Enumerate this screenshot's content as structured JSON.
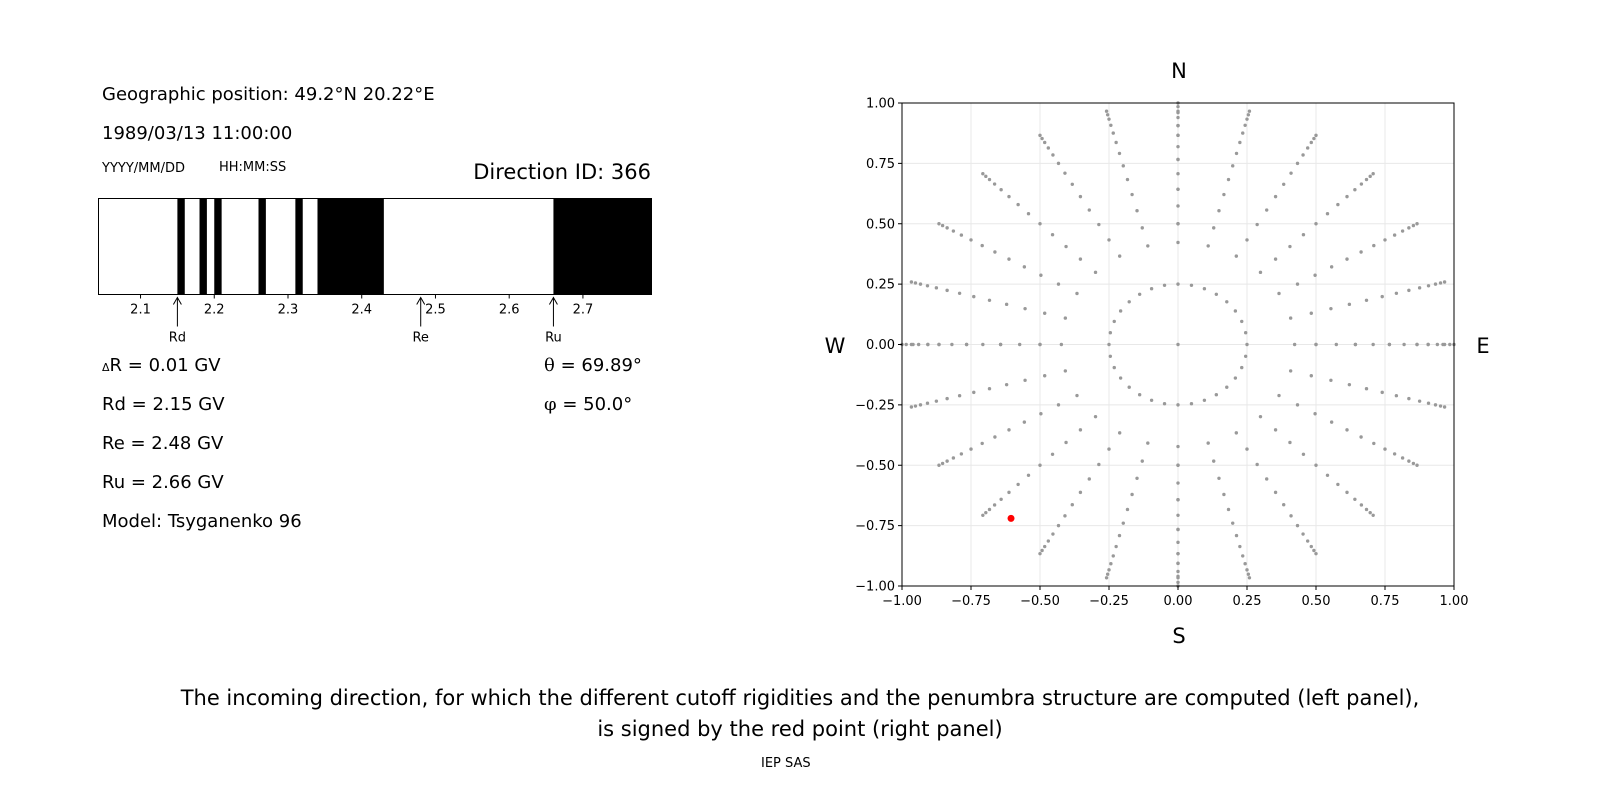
{
  "info": {
    "geo_position": "Geographic position: 49.2°N 20.22°E",
    "datetime": "1989/03/13 11:00:00",
    "date_format": "YYYY/MM/DD",
    "time_format": "HH:MM:SS",
    "direction_id": "Direction ID: 366"
  },
  "left_results": {
    "delta_r_symbol": "Δ",
    "delta_r": "R = 0.01 GV",
    "rd": "Rd = 2.15 GV",
    "re": "Re = 2.48 GV",
    "ru": "Ru = 2.66 GV",
    "model": "Model: Tsyganenko 96",
    "theta_symbol": "θ",
    "theta": "= 69.89°",
    "phi_symbol": "φ",
    "phi": "= 50.0°"
  },
  "caption": {
    "line1": "The incoming direction, for which the different cutoff rigidities and the penumbra structure are computed (left panel),",
    "line2": "is signed by the red point (right panel)",
    "credit": "IEP SAS"
  },
  "colors": {
    "grid_points": "#999999",
    "selected_point": "#ff0000",
    "penumbra_forbidden": "#000000",
    "penumbra_allowed": "#ffffff"
  },
  "chart_data": [
    {
      "type": "bar",
      "description_hint": "penumbra structure (black = forbidden rigidity bands)",
      "xlim": [
        2.043,
        2.793
      ],
      "x_ticks": [
        2.1,
        2.2,
        2.3,
        2.4,
        2.5,
        2.6,
        2.7
      ],
      "x_tick_labels": [
        "2.1",
        "2.2",
        "2.3",
        "2.4",
        "2.5",
        "2.6",
        "2.7"
      ],
      "forbidden_bands": [
        [
          2.15,
          2.16
        ],
        [
          2.18,
          2.19
        ],
        [
          2.2,
          2.21
        ],
        [
          2.26,
          2.27
        ],
        [
          2.31,
          2.32
        ],
        [
          2.34,
          2.43
        ],
        [
          2.66,
          2.793
        ]
      ],
      "markers": [
        {
          "label": "Rd",
          "x": 2.15
        },
        {
          "label": "Re",
          "x": 2.48
        },
        {
          "label": "Ru",
          "x": 2.66
        }
      ]
    },
    {
      "type": "scatter",
      "xlim": [
        -1.0,
        1.0
      ],
      "ylim": [
        -1.0,
        1.0
      ],
      "x_ticks": [
        -1.0,
        -0.75,
        -0.5,
        -0.25,
        0.0,
        0.25,
        0.5,
        0.75,
        1.0
      ],
      "x_tick_labels": [
        "−1.00",
        "−0.75",
        "−0.50",
        "−0.25",
        "0.00",
        "0.25",
        "0.50",
        "0.75",
        "1.00"
      ],
      "y_ticks": [
        -1.0,
        -0.75,
        -0.5,
        -0.25,
        0.0,
        0.25,
        0.5,
        0.75,
        1.0
      ],
      "y_tick_labels": [
        "−1.00",
        "−0.75",
        "−0.50",
        "−0.25",
        "0.00",
        "0.25",
        "0.50",
        "0.75",
        "1.00"
      ],
      "grid": true,
      "compass": {
        "top": "N",
        "bottom": "S",
        "left": "W",
        "right": "E"
      },
      "points_pattern": {
        "radii": [
          0.0,
          0.25,
          0.4226,
          0.5,
          0.5736,
          0.6428,
          0.7071,
          0.766,
          0.8192,
          0.866,
          0.9063,
          0.9397,
          0.9659,
          0.9848,
          1.0
        ],
        "point_counts": [
          1,
          32,
          24,
          24,
          24,
          24,
          24,
          24,
          24,
          24,
          24,
          24,
          24,
          24,
          24
        ],
        "angle_step_deg": [
          0,
          11.25,
          15,
          15,
          15,
          15,
          15,
          15,
          15,
          15,
          15,
          15,
          15,
          15,
          15
        ]
      },
      "extra_points": [
        [
          0.0,
          0.96
        ],
        [
          0.0,
          0.9063
        ],
        [
          0.0,
          0.866
        ],
        [
          0.0,
          0.766
        ],
        [
          0.0,
          0.6428
        ],
        [
          0.0,
          0.5
        ],
        [
          0.0,
          -0.96
        ],
        [
          0.0,
          -0.9063
        ],
        [
          0.0,
          -0.866
        ],
        [
          0.0,
          -0.766
        ],
        [
          0.0,
          -0.6428
        ],
        [
          0.0,
          -0.5
        ],
        [
          0.96,
          0.0
        ],
        [
          0.9063,
          0.0
        ],
        [
          0.866,
          0.0
        ],
        [
          0.766,
          0.0
        ],
        [
          0.6428,
          0.0
        ],
        [
          0.5,
          0.0
        ],
        [
          -0.96,
          0.0
        ],
        [
          -0.9063,
          0.0
        ],
        [
          -0.866,
          0.0
        ],
        [
          -0.766,
          0.0
        ],
        [
          -0.6428,
          0.0
        ],
        [
          -0.5,
          0.0
        ]
      ],
      "selected_point": {
        "x": -0.605,
        "y": -0.72
      }
    }
  ]
}
